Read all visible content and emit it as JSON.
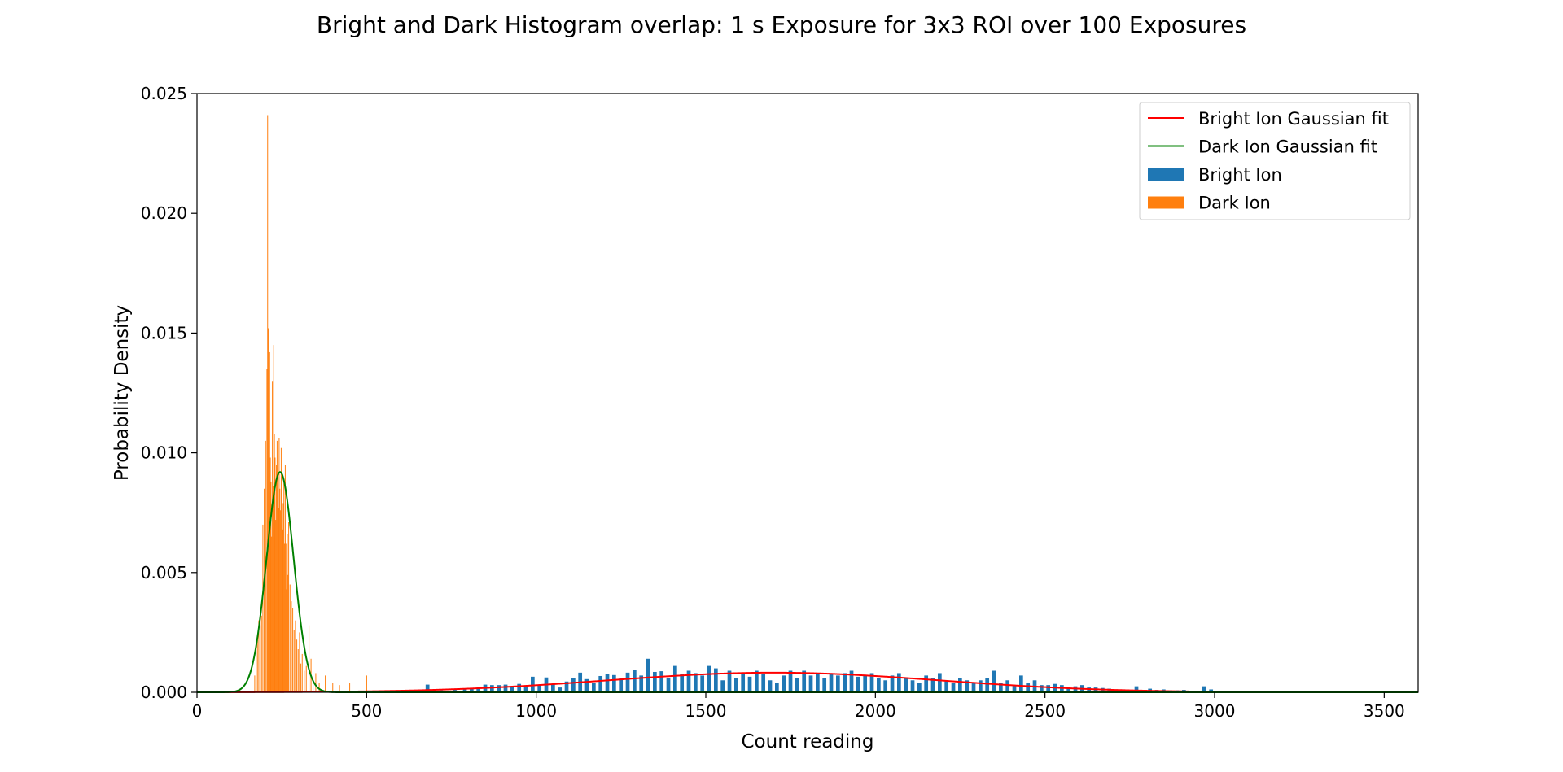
{
  "chart_data": {
    "type": "bar",
    "title": "Bright and Dark Histogram overlap: 1 s Exposure for 3x3 ROI over 100 Exposures",
    "xlabel": "Count reading",
    "ylabel": "Probability Density",
    "xlim": [
      0,
      3600
    ],
    "ylim": [
      0,
      0.025
    ],
    "xticks": [
      "0",
      "500",
      "1000",
      "1500",
      "2000",
      "2500",
      "3000",
      "3500"
    ],
    "yticks": [
      "0.000",
      "0.005",
      "0.010",
      "0.015",
      "0.020",
      "0.025"
    ],
    "legend_position": "top-right",
    "legend": [
      "Bright Ion Gaussian fit",
      "Dark Ion Gaussian fit",
      "Bright Ion",
      "Dark Ion"
    ],
    "colors": {
      "bright": "#1f77b4",
      "dark": "#ff7f0e",
      "bright_fit": "#ff0000",
      "dark_fit": "#008000"
    },
    "bright_fit": {
      "mean": 1700,
      "peak": 0.00082,
      "sigma": 490
    },
    "dark_fit": {
      "mean": 245,
      "peak": 0.0092,
      "sigma": 40
    },
    "bright_bin_width": 12,
    "dark_bin_width": 2,
    "series": [
      {
        "name": "Bright Ion",
        "x": [
          600,
          640,
          680,
          720,
          760,
          790,
          810,
          830,
          850,
          870,
          890,
          910,
          930,
          950,
          970,
          990,
          1010,
          1030,
          1050,
          1070,
          1090,
          1110,
          1130,
          1150,
          1170,
          1190,
          1210,
          1230,
          1250,
          1270,
          1290,
          1310,
          1330,
          1350,
          1370,
          1390,
          1410,
          1430,
          1450,
          1470,
          1490,
          1510,
          1530,
          1550,
          1570,
          1590,
          1610,
          1630,
          1650,
          1670,
          1690,
          1710,
          1730,
          1750,
          1770,
          1790,
          1810,
          1830,
          1850,
          1870,
          1890,
          1910,
          1930,
          1950,
          1970,
          1990,
          2010,
          2030,
          2050,
          2070,
          2090,
          2110,
          2130,
          2150,
          2170,
          2190,
          2210,
          2230,
          2250,
          2270,
          2290,
          2310,
          2330,
          2350,
          2370,
          2390,
          2410,
          2430,
          2450,
          2470,
          2490,
          2510,
          2530,
          2550,
          2570,
          2590,
          2610,
          2630,
          2650,
          2670,
          2690,
          2710,
          2730,
          2750,
          2770,
          2790,
          2810,
          2830,
          2850,
          2870,
          2890,
          2910,
          2930,
          2950,
          2970,
          2990,
          3010,
          3050,
          3100,
          3150,
          3200
        ],
        "values": [
          3e-05,
          5e-05,
          0.00032,
          8e-05,
          0.0001,
          0.00015,
          0.00018,
          0.0002,
          0.00032,
          0.0003,
          0.0003,
          0.00032,
          0.00026,
          0.00035,
          0.00028,
          0.00065,
          0.0003,
          0.00062,
          0.00035,
          0.0002,
          0.00045,
          0.0006,
          0.00082,
          0.00055,
          0.0004,
          0.00068,
          0.00075,
          0.00072,
          0.0006,
          0.00082,
          0.00095,
          0.0007,
          0.0014,
          0.00085,
          0.00088,
          0.0006,
          0.0011,
          0.00075,
          0.0009,
          0.0008,
          0.0007,
          0.0011,
          0.001,
          0.0005,
          0.0009,
          0.0006,
          0.0008,
          0.00065,
          0.0009,
          0.00075,
          0.0005,
          0.0004,
          0.0007,
          0.0009,
          0.0006,
          0.0009,
          0.0007,
          0.0008,
          0.0006,
          0.0008,
          0.0007,
          0.0008,
          0.0009,
          0.00065,
          0.0007,
          0.0008,
          0.0006,
          0.0005,
          0.0007,
          0.0008,
          0.0006,
          0.0005,
          0.0004,
          0.0007,
          0.0006,
          0.0008,
          0.0005,
          0.0004,
          0.0006,
          0.0005,
          0.0004,
          0.0005,
          0.0006,
          0.0009,
          0.0004,
          0.0005,
          0.0003,
          0.0007,
          0.0004,
          0.0005,
          0.0003,
          0.0003,
          0.00035,
          0.0003,
          0.0002,
          0.00025,
          0.0003,
          0.0002,
          0.0002,
          0.00018,
          0.00015,
          0.0001,
          0.00012,
          0.0001,
          0.00025,
          0.0001,
          0.00015,
          0.0001,
          0.00012,
          8e-05,
          8e-05,
          0.0001,
          5e-05,
          6e-05,
          0.00025,
          0.00012,
          5e-05,
          4e-05,
          4e-05,
          2e-05,
          2e-05
        ]
      },
      {
        "name": "Dark Ion",
        "x": [
          170,
          174,
          178,
          182,
          186,
          190,
          194,
          198,
          202,
          206,
          208,
          210,
          212,
          214,
          216,
          218,
          220,
          222,
          224,
          226,
          228,
          230,
          232,
          234,
          236,
          238,
          240,
          242,
          244,
          246,
          248,
          250,
          252,
          254,
          256,
          258,
          260,
          262,
          264,
          266,
          268,
          270,
          274,
          278,
          282,
          286,
          290,
          294,
          298,
          302,
          306,
          310,
          316,
          322,
          330,
          336,
          342,
          350,
          360,
          378,
          400,
          420,
          450,
          500
        ],
        "values": [
          0.0007,
          0.0015,
          0.0022,
          0.003,
          0.0028,
          0.0032,
          0.007,
          0.0085,
          0.0105,
          0.0135,
          0.0241,
          0.0152,
          0.012,
          0.0142,
          0.0098,
          0.0088,
          0.0065,
          0.013,
          0.0086,
          0.0145,
          0.0108,
          0.0098,
          0.0072,
          0.0095,
          0.0105,
          0.0085,
          0.0077,
          0.0106,
          0.0085,
          0.0076,
          0.0102,
          0.0093,
          0.0068,
          0.0079,
          0.0088,
          0.0062,
          0.0095,
          0.0062,
          0.0043,
          0.0066,
          0.0049,
          0.0071,
          0.0045,
          0.0038,
          0.0035,
          0.0026,
          0.003,
          0.0022,
          0.0018,
          0.0025,
          0.0012,
          0.0016,
          0.0009,
          0.0011,
          0.0028,
          0.0014,
          0.0005,
          0.0008,
          0.0004,
          0.0007,
          0.0004,
          0.0003,
          0.0004,
          0.0007
        ]
      }
    ]
  }
}
